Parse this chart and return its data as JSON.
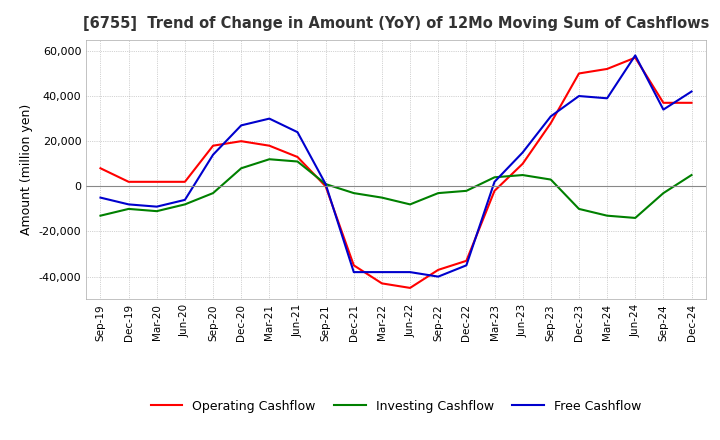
{
  "title": "[6755]  Trend of Change in Amount (YoY) of 12Mo Moving Sum of Cashflows",
  "ylabel": "Amount (million yen)",
  "ylim": [
    -50000,
    65000
  ],
  "yticks": [
    -40000,
    -20000,
    0,
    20000,
    40000,
    60000
  ],
  "x_labels": [
    "Sep-19",
    "Dec-19",
    "Mar-20",
    "Jun-20",
    "Sep-20",
    "Dec-20",
    "Mar-21",
    "Jun-21",
    "Sep-21",
    "Dec-21",
    "Mar-22",
    "Jun-22",
    "Sep-22",
    "Dec-22",
    "Mar-23",
    "Jun-23",
    "Sep-23",
    "Dec-23",
    "Mar-24",
    "Jun-24",
    "Sep-24",
    "Dec-24"
  ],
  "operating_cashflow": [
    8000,
    2000,
    2000,
    2000,
    18000,
    20000,
    18000,
    13000,
    0,
    -35000,
    -43000,
    -45000,
    -37000,
    -33000,
    -2000,
    10000,
    28000,
    50000,
    52000,
    57000,
    37000,
    37000
  ],
  "investing_cashflow": [
    -13000,
    -10000,
    -11000,
    -8000,
    -3000,
    8000,
    12000,
    11000,
    1000,
    -3000,
    -5000,
    -8000,
    -3000,
    -2000,
    4000,
    5000,
    3000,
    -10000,
    -13000,
    -14000,
    -3000,
    5000
  ],
  "free_cashflow": [
    -5000,
    -8000,
    -9000,
    -6000,
    14000,
    27000,
    30000,
    24000,
    1000,
    -38000,
    -38000,
    -38000,
    -40000,
    -35000,
    2000,
    15000,
    31000,
    40000,
    39000,
    58000,
    34000,
    42000
  ],
  "operating_color": "#ff0000",
  "investing_color": "#008000",
  "free_color": "#0000cd",
  "line_width": 1.5,
  "background_color": "#ffffff",
  "grid_color": "#aaaaaa"
}
